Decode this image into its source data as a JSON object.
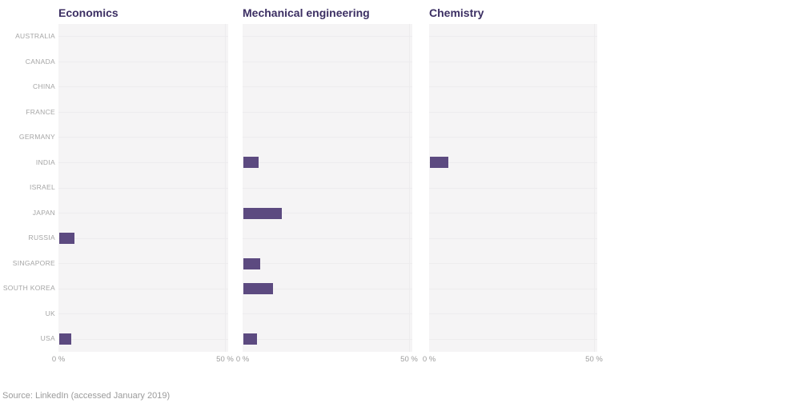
{
  "page": {
    "source_note": "Source: LinkedIn (accessed January 2019)"
  },
  "chart_data": {
    "type": "bar",
    "orientation": "horizontal",
    "layout_hint": "three small-multiple panels sharing one category axis, grid of faint row lines, x tick labels 0% and 50% below each panel",
    "categories": [
      "AUSTRALIA",
      "CANADA",
      "CHINA",
      "FRANCE",
      "GERMANY",
      "INDIA",
      "ISRAEL",
      "JAPAN",
      "RUSSIA",
      "SINGAPORE",
      "SOUTH KOREA",
      "UK",
      "USA"
    ],
    "series": [
      {
        "name": "Economics",
        "values": [
          0,
          0,
          0,
          0,
          0,
          0,
          0,
          0,
          4.5,
          0,
          0,
          0,
          3.5
        ]
      },
      {
        "name": "Mechanical engineering",
        "values": [
          0,
          0,
          0,
          0,
          0,
          4.5,
          0,
          11.5,
          0,
          5,
          9,
          0,
          4
        ]
      },
      {
        "name": "Chemistry",
        "values": [
          0,
          0,
          0,
          0,
          0,
          5.5,
          0,
          0,
          0,
          0,
          0,
          0,
          0
        ]
      }
    ],
    "unit": "%",
    "xlim": [
      0,
      51
    ],
    "x_ticks": [
      {
        "value": 0,
        "label": "0 %"
      },
      {
        "value": 50,
        "label": "50 %"
      }
    ],
    "title": "",
    "xlabel": "",
    "ylabel": "",
    "legend": "none",
    "bar_color": "#5c4a80",
    "title_color": "#3c2f63",
    "plot_background": "#f5f4f5",
    "source": "Source: LinkedIn (accessed January 2019)"
  }
}
